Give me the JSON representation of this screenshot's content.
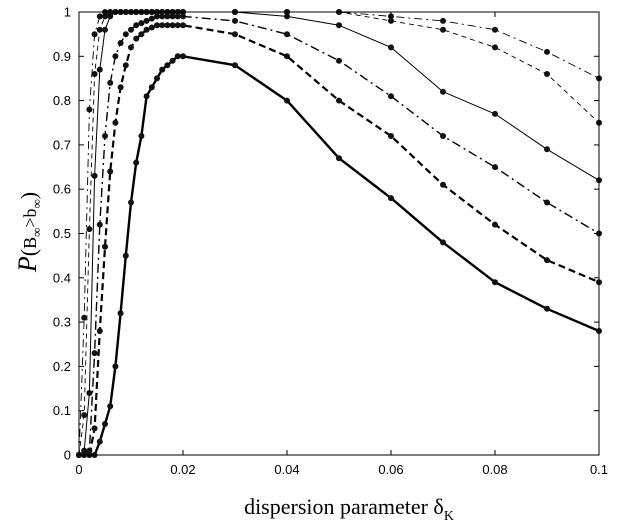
{
  "chart_data": {
    "type": "line",
    "xlabel": {
      "main": "dispersion parameter δ",
      "sub": "K"
    },
    "ylabel": {
      "prefix": "P",
      "open": "(",
      "b1": "B",
      "sub1": "∞",
      "rel": ">",
      "b2": "b",
      "sub2": "∞",
      "close": ")"
    },
    "xlim": [
      0,
      0.1
    ],
    "ylim": [
      0,
      1
    ],
    "grid": false,
    "legend": "none",
    "xticks": [
      0,
      0.02,
      0.04,
      0.06,
      0.08,
      0.1
    ],
    "xtick_labels": [
      "0",
      "0.02",
      "0.04",
      "0.06",
      "0.08",
      "0.1"
    ],
    "yticks": [
      0,
      0.1,
      0.2,
      0.3,
      0.4,
      0.5,
      0.6,
      0.7,
      0.8,
      0.9,
      1
    ],
    "ytick_labels": [
      "0",
      "0.1",
      "0.2",
      "0.3",
      "0.4",
      "0.5",
      "0.6",
      "0.7",
      "0.8",
      "0.9",
      "1"
    ],
    "marker_color": "#111111",
    "series": [
      {
        "style": "solid-thick",
        "x": [
          0,
          0.001,
          0.002,
          0.003,
          0.004,
          0.005,
          0.006,
          0.007,
          0.008,
          0.009,
          0.01,
          0.011,
          0.012,
          0.013,
          0.014,
          0.015,
          0.016,
          0.017,
          0.018,
          0.019,
          0.02,
          0.03,
          0.04,
          0.05,
          0.06,
          0.07,
          0.08,
          0.09,
          0.1
        ],
        "y": [
          0,
          0,
          0,
          0,
          0.03,
          0.07,
          0.11,
          0.2,
          0.32,
          0.45,
          0.57,
          0.66,
          0.72,
          0.81,
          0.83,
          0.85,
          0.87,
          0.88,
          0.89,
          0.9,
          0.9,
          0.88,
          0.8,
          0.67,
          0.58,
          0.48,
          0.39,
          0.33,
          0.28
        ]
      },
      {
        "style": "dashed-thick",
        "x": [
          0,
          0.001,
          0.002,
          0.003,
          0.004,
          0.005,
          0.006,
          0.007,
          0.008,
          0.009,
          0.01,
          0.011,
          0.012,
          0.013,
          0.014,
          0.015,
          0.016,
          0.017,
          0.018,
          0.019,
          0.02,
          0.03,
          0.04,
          0.05,
          0.06,
          0.07,
          0.08,
          0.09,
          0.1
        ],
        "y": [
          0,
          0,
          0,
          0.06,
          0.28,
          0.47,
          0.64,
          0.75,
          0.83,
          0.88,
          0.92,
          0.94,
          0.95,
          0.96,
          0.965,
          0.97,
          0.97,
          0.97,
          0.97,
          0.97,
          0.97,
          0.95,
          0.9,
          0.8,
          0.72,
          0.61,
          0.52,
          0.44,
          0.39
        ]
      },
      {
        "style": "dashdot",
        "x": [
          0,
          0.001,
          0.002,
          0.003,
          0.004,
          0.005,
          0.006,
          0.007,
          0.008,
          0.009,
          0.01,
          0.011,
          0.012,
          0.013,
          0.014,
          0.015,
          0.016,
          0.017,
          0.018,
          0.019,
          0.02,
          0.03,
          0.04,
          0.05,
          0.06,
          0.07,
          0.08,
          0.09,
          0.1
        ],
        "y": [
          0,
          0,
          0.01,
          0.23,
          0.52,
          0.72,
          0.84,
          0.9,
          0.93,
          0.95,
          0.96,
          0.97,
          0.975,
          0.98,
          0.985,
          0.99,
          0.99,
          0.99,
          0.99,
          0.99,
          0.99,
          0.98,
          0.95,
          0.89,
          0.81,
          0.72,
          0.65,
          0.57,
          0.5
        ]
      },
      {
        "style": "solid-thin",
        "x": [
          0,
          0.001,
          0.002,
          0.003,
          0.004,
          0.005,
          0.006,
          0.007,
          0.008,
          0.009,
          0.01,
          0.011,
          0.012,
          0.013,
          0.014,
          0.015,
          0.016,
          0.017,
          0.018,
          0.019,
          0.02,
          0.03,
          0.04,
          0.05,
          0.06,
          0.07,
          0.08,
          0.09,
          0.1
        ],
        "y": [
          0,
          0.01,
          0.14,
          0.63,
          0.87,
          0.96,
          0.99,
          1,
          1,
          1,
          1,
          1,
          1,
          1,
          1,
          1,
          1,
          1,
          1,
          1,
          1,
          1,
          0.99,
          0.97,
          0.92,
          0.82,
          0.77,
          0.69,
          0.62
        ]
      },
      {
        "style": "dashed-thin",
        "x": [
          0,
          0.001,
          0.002,
          0.003,
          0.004,
          0.005,
          0.006,
          0.007,
          0.008,
          0.009,
          0.01,
          0.011,
          0.012,
          0.013,
          0.014,
          0.015,
          0.016,
          0.017,
          0.018,
          0.019,
          0.02,
          0.03,
          0.04,
          0.05,
          0.06,
          0.07,
          0.08,
          0.09,
          0.1
        ],
        "y": [
          0,
          0.09,
          0.51,
          0.86,
          0.96,
          0.99,
          1,
          1,
          1,
          1,
          1,
          1,
          1,
          1,
          1,
          1,
          1,
          1,
          1,
          1,
          1,
          1,
          1,
          1,
          0.98,
          0.96,
          0.92,
          0.86,
          0.75
        ]
      },
      {
        "style": "dashdot-thin",
        "x": [
          0,
          0.001,
          0.002,
          0.003,
          0.004,
          0.005,
          0.006,
          0.007,
          0.008,
          0.009,
          0.01,
          0.011,
          0.012,
          0.013,
          0.014,
          0.015,
          0.016,
          0.017,
          0.018,
          0.019,
          0.02,
          0.03,
          0.04,
          0.05,
          0.06,
          0.07,
          0.08,
          0.09,
          0.1
        ],
        "y": [
          0,
          0.31,
          0.78,
          0.95,
          0.99,
          1,
          1,
          1,
          1,
          1,
          1,
          1,
          1,
          1,
          1,
          1,
          1,
          1,
          1,
          1,
          1,
          1,
          1,
          1,
          0.99,
          0.98,
          0.96,
          0.91,
          0.85
        ]
      }
    ]
  }
}
